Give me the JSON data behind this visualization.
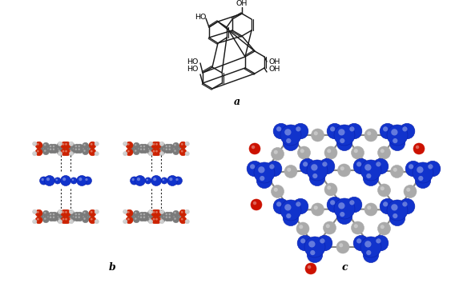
{
  "background_color": "#ffffff",
  "fig_width": 5.63,
  "fig_height": 3.59,
  "dpi": 100,
  "panel_a_label": "a",
  "panel_b_label": "b",
  "panel_c_label": "c",
  "mol_color": "#1a1a1a",
  "blue_color": "#1133cc",
  "gray_color": "#888888",
  "red_color": "#cc2200",
  "white_color": "#e8e8e8",
  "bond_lw": 1.0
}
